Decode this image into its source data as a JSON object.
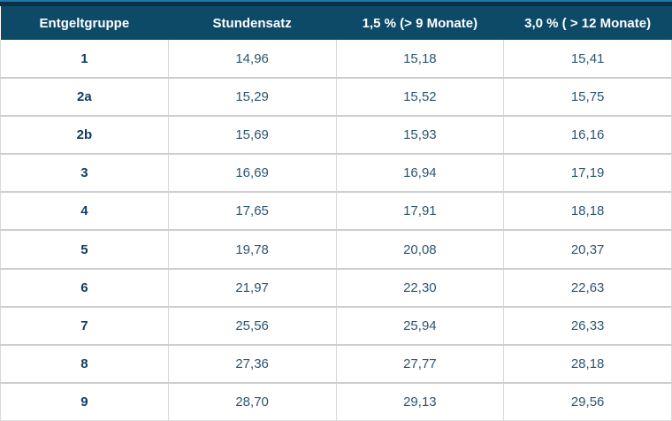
{
  "chart_data": {
    "type": "table",
    "title": "",
    "columns": [
      "Entgeltgruppe",
      "Stundensatz",
      "1,5 % (> 9 Monate)",
      "3,0 % ( > 12 Monate)"
    ],
    "rows": [
      [
        "1",
        "14,96",
        "15,18",
        "15,41"
      ],
      [
        "2a",
        "15,29",
        "15,52",
        "15,75"
      ],
      [
        "2b",
        "15,69",
        "15,93",
        "16,16"
      ],
      [
        "3",
        "16,69",
        "16,94",
        "17,19"
      ],
      [
        "4",
        "17,65",
        "17,91",
        "18,18"
      ],
      [
        "5",
        "19,78",
        "20,08",
        "20,37"
      ],
      [
        "6",
        "21,97",
        "22,30",
        "22,63"
      ],
      [
        "7",
        "25,56",
        "25,94",
        "26,33"
      ],
      [
        "8",
        "27,36",
        "27,77",
        "28,18"
      ],
      [
        "9",
        "28,70",
        "29,13",
        "29,56"
      ]
    ]
  },
  "colors": {
    "header_bg": "#0d4a68",
    "header_text": "#ffffff",
    "group_text": "#123c63",
    "value_text": "#2d5670",
    "row_border": "#cfcfcf",
    "column_border": "#dadada",
    "top_strip_bg": "#0a3148",
    "top_strip_edge": "#1f78a6"
  }
}
